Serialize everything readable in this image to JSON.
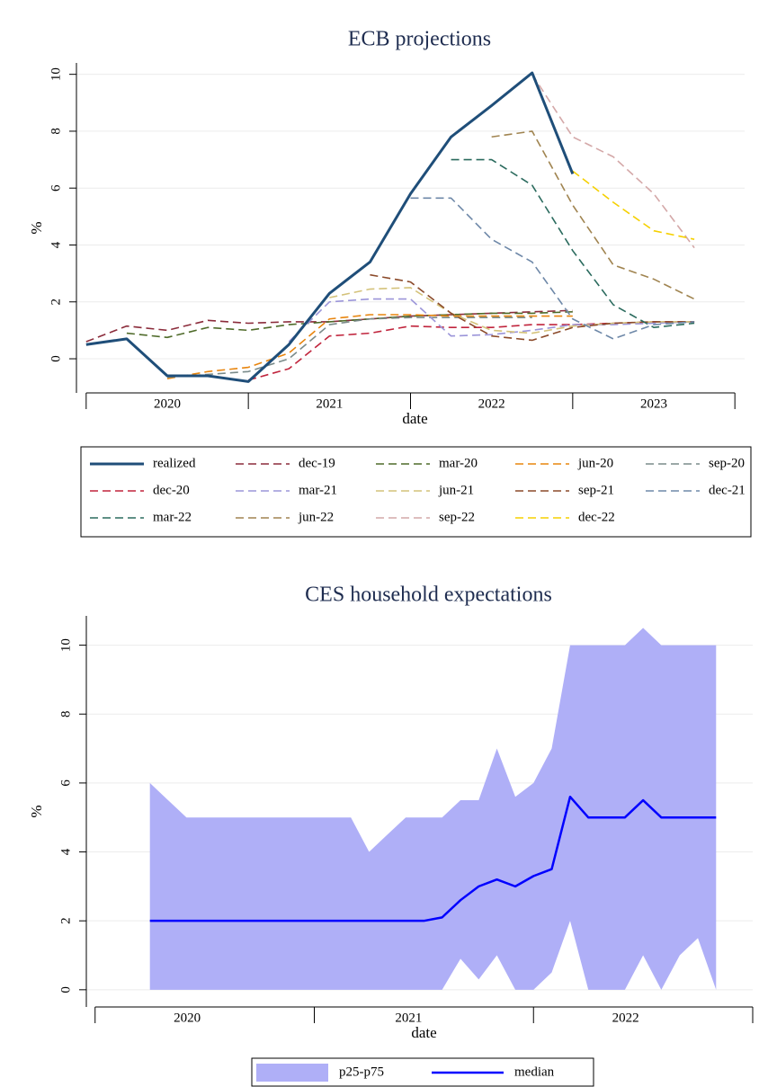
{
  "chart_data": [
    {
      "type": "line",
      "title": "ECB projections",
      "xlabel": "date",
      "ylabel": "%",
      "x": [
        2020.0,
        2020.25,
        2020.5,
        2020.75,
        2021.0,
        2021.25,
        2021.5,
        2021.75,
        2022.0,
        2022.25,
        2022.5,
        2022.75,
        2023.0,
        2023.25,
        2023.5,
        2023.75
      ],
      "series": [
        {
          "name": "realized",
          "color": "#1f4e79",
          "dashed": false,
          "values": [
            0.5,
            0.7,
            -0.6,
            -0.6,
            -0.8,
            0.5,
            2.3,
            3.4,
            5.8,
            7.8,
            8.9,
            10.05,
            6.5,
            null,
            null,
            null
          ]
        },
        {
          "name": "dec-19",
          "color": "#8b2c3b",
          "dashed": true,
          "values": [
            0.6,
            1.15,
            1.0,
            1.35,
            1.25,
            1.3,
            1.3,
            1.4,
            1.5,
            1.55,
            1.6,
            1.65,
            1.7,
            null,
            null,
            null
          ]
        },
        {
          "name": "mar-20",
          "color": "#4f6b2a",
          "dashed": true,
          "values": [
            null,
            0.9,
            0.75,
            1.1,
            1.0,
            1.2,
            1.3,
            1.4,
            1.5,
            1.55,
            1.6,
            1.6,
            1.65,
            null,
            null,
            null
          ]
        },
        {
          "name": "jun-20",
          "color": "#e8850e",
          "dashed": true,
          "values": [
            null,
            null,
            -0.7,
            -0.45,
            -0.3,
            0.2,
            1.4,
            1.55,
            1.55,
            1.5,
            1.5,
            1.5,
            1.5,
            null,
            null,
            null
          ]
        },
        {
          "name": "sep-20",
          "color": "#7a8b8a",
          "dashed": true,
          "values": [
            null,
            null,
            -0.65,
            -0.55,
            -0.45,
            0.0,
            1.2,
            1.4,
            1.45,
            1.45,
            1.45,
            1.45,
            null,
            null,
            null,
            null
          ]
        },
        {
          "name": "dec-20",
          "color": "#c0243c",
          "dashed": true,
          "values": [
            null,
            null,
            null,
            null,
            -0.75,
            -0.35,
            0.8,
            0.9,
            1.15,
            1.1,
            1.1,
            1.2,
            1.2,
            1.25,
            1.3,
            1.3
          ]
        },
        {
          "name": "mar-21",
          "color": "#9b95d9",
          "dashed": true,
          "values": [
            null,
            null,
            null,
            null,
            null,
            0.6,
            2.0,
            2.1,
            2.1,
            0.8,
            0.85,
            1.0,
            1.2,
            1.2,
            1.25,
            1.3
          ]
        },
        {
          "name": "jun-21",
          "color": "#d4c27a",
          "dashed": true,
          "values": [
            null,
            null,
            null,
            null,
            null,
            null,
            2.15,
            2.45,
            2.5,
            1.6,
            1.0,
            0.9,
            1.15,
            1.25,
            1.3,
            1.3
          ]
        },
        {
          "name": "sep-21",
          "color": "#8b4a2a",
          "dashed": true,
          "values": [
            null,
            null,
            null,
            null,
            null,
            null,
            null,
            2.95,
            2.7,
            1.6,
            0.8,
            0.65,
            1.1,
            1.25,
            1.3,
            1.3
          ]
        },
        {
          "name": "dec-21",
          "color": "#6e88a8",
          "dashed": true,
          "values": [
            null,
            null,
            null,
            null,
            null,
            null,
            null,
            null,
            5.65,
            5.65,
            4.2,
            3.4,
            1.4,
            0.7,
            1.2,
            1.3
          ]
        },
        {
          "name": "mar-22",
          "color": "#2b6b5e",
          "dashed": true,
          "values": [
            null,
            null,
            null,
            null,
            null,
            null,
            null,
            null,
            null,
            7.0,
            7.0,
            6.1,
            3.8,
            1.9,
            1.1,
            1.25
          ]
        },
        {
          "name": "jun-22",
          "color": "#a08450",
          "dashed": true,
          "values": [
            null,
            null,
            null,
            null,
            null,
            null,
            null,
            null,
            null,
            null,
            7.8,
            8.0,
            5.4,
            3.3,
            2.8,
            2.1
          ]
        },
        {
          "name": "sep-22",
          "color": "#d4a8a8",
          "dashed": true,
          "values": [
            null,
            null,
            null,
            null,
            null,
            null,
            null,
            null,
            null,
            null,
            null,
            10.0,
            7.8,
            7.1,
            5.8,
            3.9
          ]
        },
        {
          "name": "dec-22",
          "color": "#f5d000",
          "dashed": true,
          "values": [
            null,
            null,
            null,
            null,
            null,
            null,
            null,
            null,
            null,
            null,
            null,
            null,
            6.6,
            5.5,
            4.5,
            4.2
          ]
        }
      ],
      "xlim": [
        2019.94,
        2024.06
      ],
      "ylim": [
        -1.2,
        10.4
      ],
      "yticks": [
        0,
        2,
        4,
        6,
        8,
        10
      ],
      "xticks": [
        {
          "value": 2020.5,
          "label": "2020"
        },
        {
          "value": 2021.5,
          "label": "2021"
        },
        {
          "value": 2022.5,
          "label": "2022"
        },
        {
          "value": 2023.5,
          "label": "2023"
        }
      ],
      "xtick_marks": [
        2020,
        2021,
        2022,
        2023,
        2024
      ],
      "grid": true,
      "legend": "bottom"
    },
    {
      "type": "area",
      "title": "CES household expectations",
      "xlabel": "date",
      "ylabel": "%",
      "x": [
        2020.25,
        2020.333,
        2020.417,
        2020.5,
        2020.583,
        2020.667,
        2020.75,
        2020.833,
        2020.917,
        2021.0,
        2021.083,
        2021.167,
        2021.25,
        2021.333,
        2021.417,
        2021.5,
        2021.583,
        2021.667,
        2021.75,
        2021.833,
        2021.917,
        2022.0,
        2022.083,
        2022.167,
        2022.25,
        2022.333,
        2022.417,
        2022.5,
        2022.583,
        2022.667,
        2022.75,
        2022.833
      ],
      "series": [
        {
          "name": "p25-p75",
          "color": "#afaff7",
          "lower": [
            0,
            0,
            0,
            0,
            0,
            0,
            0,
            0,
            0,
            0,
            0,
            0,
            0,
            0,
            0,
            0,
            0,
            0.9,
            0.3,
            1.0,
            0,
            0,
            0.5,
            2.0,
            0,
            0,
            0,
            1.0,
            0,
            1.0,
            1.5,
            0
          ],
          "upper": [
            6,
            5.5,
            5,
            5,
            5,
            5,
            5,
            5,
            5,
            5,
            5,
            5,
            4,
            4.5,
            5,
            5,
            5,
            5.5,
            5.5,
            7,
            5.6,
            6,
            7,
            10,
            10,
            10,
            10,
            10.5,
            10,
            10,
            10,
            10
          ]
        },
        {
          "name": "median",
          "color": "#0000ff",
          "values": [
            2,
            2,
            2,
            2,
            2,
            2,
            2,
            2,
            2,
            2,
            2,
            2,
            2,
            2,
            2,
            2,
            2.1,
            2.6,
            3.0,
            3.2,
            3.0,
            3.3,
            3.5,
            5.6,
            5.0,
            5.0,
            5.0,
            5.5,
            5.0,
            5.0,
            5.0,
            5.0
          ]
        }
      ],
      "xlim": [
        2019.96,
        2023.0
      ],
      "ylim": [
        -0.5,
        10.85
      ],
      "yticks": [
        0,
        2,
        4,
        6,
        8,
        10
      ],
      "xticks": [
        {
          "value": 2020.42,
          "label": "2020"
        },
        {
          "value": 2021.43,
          "label": "2021"
        },
        {
          "value": 2022.42,
          "label": "2022"
        }
      ],
      "xtick_marks": [
        2020,
        2021,
        2022,
        2023
      ],
      "grid": true,
      "legend": "bottom"
    }
  ]
}
